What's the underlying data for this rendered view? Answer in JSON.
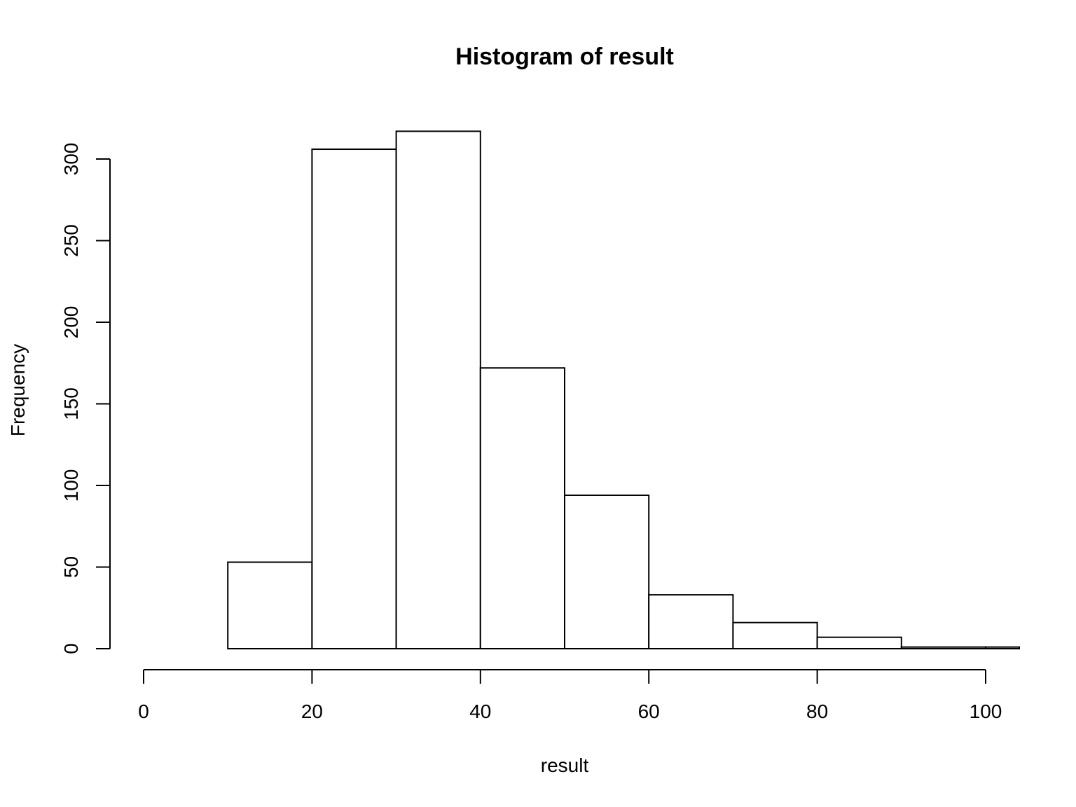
{
  "chart_data": {
    "type": "bar",
    "title": "Histogram of result",
    "xlabel": "result",
    "ylabel": "Frequency",
    "bins": [
      {
        "start": 10,
        "end": 20,
        "count": 53
      },
      {
        "start": 20,
        "end": 30,
        "count": 306
      },
      {
        "start": 30,
        "end": 40,
        "count": 317
      },
      {
        "start": 40,
        "end": 50,
        "count": 172
      },
      {
        "start": 50,
        "end": 60,
        "count": 94
      },
      {
        "start": 60,
        "end": 70,
        "count": 33
      },
      {
        "start": 70,
        "end": 80,
        "count": 16
      },
      {
        "start": 80,
        "end": 90,
        "count": 7
      },
      {
        "start": 90,
        "end": 100,
        "count": 1
      },
      {
        "start": 100,
        "end": 110,
        "count": 1
      }
    ],
    "x_ticks": [
      0,
      20,
      40,
      60,
      80,
      100
    ],
    "y_ticks": [
      0,
      50,
      100,
      150,
      200,
      250,
      300
    ],
    "xlim": [
      0,
      100
    ],
    "ylim": [
      0,
      300
    ],
    "grid": false,
    "bar_fill": "#ffffff",
    "bar_stroke": "#000000"
  }
}
